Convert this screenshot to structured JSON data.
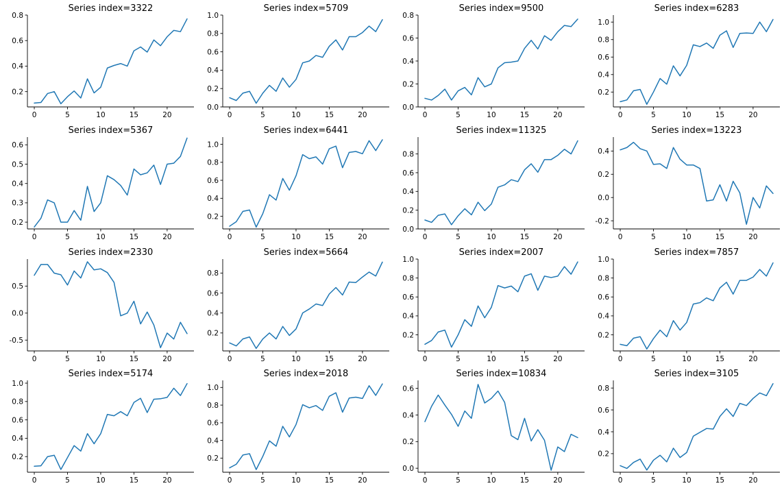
{
  "colors": {
    "line": "#1f77b4"
  },
  "chart_data": [
    {
      "type": "line",
      "title": "Series index=3322",
      "xlim": [
        0,
        23
      ],
      "ylim": [
        0.08,
        0.8
      ],
      "xticks": [
        0,
        5,
        10,
        15,
        20
      ],
      "yticks": [
        0.2,
        0.4,
        0.6,
        0.8
      ],
      "x": [
        0,
        1,
        2,
        3,
        4,
        5,
        6,
        7,
        8,
        9,
        10,
        11,
        12,
        13,
        14,
        15,
        16,
        17,
        18,
        19,
        20,
        21,
        22,
        23
      ],
      "values": [
        0.11,
        0.115,
        0.185,
        0.2,
        0.105,
        0.16,
        0.205,
        0.15,
        0.3,
        0.19,
        0.235,
        0.385,
        0.405,
        0.42,
        0.4,
        0.52,
        0.55,
        0.51,
        0.605,
        0.56,
        0.63,
        0.68,
        0.67,
        0.77
      ]
    },
    {
      "type": "line",
      "title": "Series index=5709",
      "xlim": [
        0,
        23
      ],
      "ylim": [
        0,
        1.0
      ],
      "xticks": [
        0,
        5,
        10,
        15,
        20
      ],
      "yticks": [
        0.0,
        0.2,
        0.4,
        0.6,
        0.8,
        1.0
      ],
      "x": [
        0,
        1,
        2,
        3,
        4,
        5,
        6,
        7,
        8,
        9,
        10,
        11,
        12,
        13,
        14,
        15,
        16,
        17,
        18,
        19,
        20,
        21,
        22,
        23
      ],
      "values": [
        0.1,
        0.07,
        0.15,
        0.17,
        0.04,
        0.15,
        0.235,
        0.17,
        0.315,
        0.215,
        0.3,
        0.48,
        0.5,
        0.56,
        0.54,
        0.66,
        0.73,
        0.62,
        0.765,
        0.765,
        0.81,
        0.88,
        0.82,
        0.95
      ]
    },
    {
      "type": "line",
      "title": "Series index=9500",
      "xlim": [
        0,
        23
      ],
      "ylim": [
        0,
        0.8
      ],
      "xticks": [
        0,
        5,
        10,
        15,
        20
      ],
      "yticks": [
        0.0,
        0.2,
        0.4,
        0.6,
        0.8
      ],
      "x": [
        0,
        1,
        2,
        3,
        4,
        5,
        6,
        7,
        8,
        9,
        10,
        11,
        12,
        13,
        14,
        15,
        16,
        17,
        18,
        19,
        20,
        21,
        22,
        23
      ],
      "values": [
        0.075,
        0.06,
        0.1,
        0.155,
        0.06,
        0.14,
        0.17,
        0.105,
        0.255,
        0.175,
        0.2,
        0.34,
        0.385,
        0.39,
        0.4,
        0.51,
        0.58,
        0.505,
        0.62,
        0.58,
        0.655,
        0.71,
        0.7,
        0.765
      ]
    },
    {
      "type": "line",
      "title": "Series index=6283",
      "xlim": [
        0,
        23
      ],
      "ylim": [
        0.03,
        1.08
      ],
      "xticks": [
        0,
        5,
        10,
        15,
        20
      ],
      "yticks": [
        0.2,
        0.4,
        0.6,
        0.8,
        1.0
      ],
      "x": [
        0,
        1,
        2,
        3,
        4,
        5,
        6,
        7,
        8,
        9,
        10,
        11,
        12,
        13,
        14,
        15,
        16,
        17,
        18,
        19,
        20,
        21,
        22,
        23
      ],
      "values": [
        0.09,
        0.11,
        0.215,
        0.23,
        0.06,
        0.2,
        0.355,
        0.29,
        0.5,
        0.385,
        0.505,
        0.74,
        0.72,
        0.76,
        0.7,
        0.85,
        0.9,
        0.71,
        0.87,
        0.875,
        0.87,
        1.0,
        0.89,
        1.03
      ]
    },
    {
      "type": "line",
      "title": "Series index=5367",
      "xlim": [
        0,
        23
      ],
      "ylim": [
        0.165,
        0.64
      ],
      "xticks": [
        0,
        5,
        10,
        15,
        20
      ],
      "yticks": [
        0.2,
        0.3,
        0.4,
        0.5,
        0.6
      ],
      "x": [
        0,
        1,
        2,
        3,
        4,
        5,
        6,
        7,
        8,
        9,
        10,
        11,
        12,
        13,
        14,
        15,
        16,
        17,
        18,
        19,
        20,
        21,
        22,
        23
      ],
      "values": [
        0.175,
        0.22,
        0.315,
        0.3,
        0.2,
        0.2,
        0.26,
        0.21,
        0.385,
        0.255,
        0.3,
        0.44,
        0.42,
        0.39,
        0.34,
        0.475,
        0.445,
        0.455,
        0.495,
        0.395,
        0.5,
        0.505,
        0.54,
        0.635
      ]
    },
    {
      "type": "line",
      "title": "Series index=6441",
      "xlim": [
        0,
        23
      ],
      "ylim": [
        0.06,
        1.08
      ],
      "xticks": [
        0,
        5,
        10,
        15,
        20
      ],
      "yticks": [
        0.2,
        0.4,
        0.6,
        0.8,
        1.0
      ],
      "x": [
        0,
        1,
        2,
        3,
        4,
        5,
        6,
        7,
        8,
        9,
        10,
        11,
        12,
        13,
        14,
        15,
        16,
        17,
        18,
        19,
        20,
        21,
        22,
        23
      ],
      "values": [
        0.09,
        0.14,
        0.255,
        0.27,
        0.08,
        0.23,
        0.44,
        0.38,
        0.62,
        0.49,
        0.65,
        0.885,
        0.84,
        0.86,
        0.78,
        0.95,
        0.98,
        0.74,
        0.91,
        0.92,
        0.895,
        1.04,
        0.93,
        1.05
      ]
    },
    {
      "type": "line",
      "title": "Series index=11325",
      "xlim": [
        0,
        23
      ],
      "ylim": [
        0,
        0.98
      ],
      "xticks": [
        0,
        5,
        10,
        15,
        20
      ],
      "yticks": [
        0.0,
        0.2,
        0.4,
        0.6,
        0.8
      ],
      "x": [
        0,
        1,
        2,
        3,
        4,
        5,
        6,
        7,
        8,
        9,
        10,
        11,
        12,
        13,
        14,
        15,
        16,
        17,
        18,
        19,
        20,
        21,
        22,
        23
      ],
      "values": [
        0.095,
        0.07,
        0.145,
        0.16,
        0.045,
        0.14,
        0.215,
        0.15,
        0.285,
        0.195,
        0.265,
        0.445,
        0.47,
        0.525,
        0.505,
        0.63,
        0.695,
        0.605,
        0.74,
        0.74,
        0.785,
        0.85,
        0.8,
        0.94
      ]
    },
    {
      "type": "line",
      "title": "Series index=13223",
      "xlim": [
        0,
        23
      ],
      "ylim": [
        -0.27,
        0.52
      ],
      "xticks": [
        0,
        5,
        10,
        15,
        20
      ],
      "yticks": [
        -0.2,
        0.0,
        0.2,
        0.4
      ],
      "x": [
        0,
        1,
        2,
        3,
        4,
        5,
        6,
        7,
        8,
        9,
        10,
        11,
        12,
        13,
        14,
        15,
        16,
        17,
        18,
        19,
        20,
        21,
        22,
        23
      ],
      "values": [
        0.41,
        0.43,
        0.475,
        0.42,
        0.4,
        0.285,
        0.29,
        0.25,
        0.43,
        0.33,
        0.28,
        0.28,
        0.25,
        -0.03,
        -0.02,
        0.11,
        -0.03,
        0.14,
        0.04,
        -0.23,
        0.0,
        -0.09,
        0.1,
        0.035
      ]
    },
    {
      "type": "line",
      "title": "Series index=2330",
      "xlim": [
        0,
        23
      ],
      "ylim": [
        -0.7,
        1.0
      ],
      "xticks": [
        0,
        5,
        10,
        15,
        20
      ],
      "yticks": [
        -0.5,
        0.0,
        0.5
      ],
      "x": [
        0,
        1,
        2,
        3,
        4,
        5,
        6,
        7,
        8,
        9,
        10,
        11,
        12,
        13,
        14,
        15,
        16,
        17,
        18,
        19,
        20,
        21,
        22,
        23
      ],
      "values": [
        0.7,
        0.9,
        0.9,
        0.74,
        0.71,
        0.52,
        0.78,
        0.65,
        0.95,
        0.8,
        0.82,
        0.75,
        0.57,
        -0.05,
        0.0,
        0.22,
        -0.2,
        0.02,
        -0.22,
        -0.64,
        -0.37,
        -0.48,
        -0.17,
        -0.38
      ]
    },
    {
      "type": "line",
      "title": "Series index=5664",
      "xlim": [
        0,
        23
      ],
      "ylim": [
        0.02,
        0.94
      ],
      "xticks": [
        0,
        5,
        10,
        15,
        20
      ],
      "yticks": [
        0.2,
        0.4,
        0.6,
        0.8
      ],
      "x": [
        0,
        1,
        2,
        3,
        4,
        5,
        6,
        7,
        8,
        9,
        10,
        11,
        12,
        13,
        14,
        15,
        16,
        17,
        18,
        19,
        20,
        21,
        22,
        23
      ],
      "values": [
        0.1,
        0.07,
        0.14,
        0.16,
        0.045,
        0.14,
        0.2,
        0.14,
        0.265,
        0.175,
        0.24,
        0.4,
        0.44,
        0.49,
        0.475,
        0.59,
        0.655,
        0.58,
        0.71,
        0.705,
        0.76,
        0.81,
        0.77,
        0.91
      ]
    },
    {
      "type": "line",
      "title": "Series index=2007",
      "xlim": [
        0,
        23
      ],
      "ylim": [
        0.03,
        1.0
      ],
      "xticks": [
        0,
        5,
        10,
        15,
        20
      ],
      "yticks": [
        0.2,
        0.4,
        0.6,
        0.8,
        1.0
      ],
      "x": [
        0,
        1,
        2,
        3,
        4,
        5,
        6,
        7,
        8,
        9,
        10,
        11,
        12,
        13,
        14,
        15,
        16,
        17,
        18,
        19,
        20,
        21,
        22,
        23
      ],
      "values": [
        0.1,
        0.14,
        0.23,
        0.25,
        0.07,
        0.2,
        0.36,
        0.29,
        0.505,
        0.38,
        0.49,
        0.72,
        0.695,
        0.715,
        0.655,
        0.82,
        0.845,
        0.67,
        0.82,
        0.805,
        0.82,
        0.92,
        0.84,
        0.97
      ]
    },
    {
      "type": "line",
      "title": "Series index=7857",
      "xlim": [
        0,
        23
      ],
      "ylim": [
        0.03,
        1.0
      ],
      "xticks": [
        0,
        5,
        10,
        15,
        20
      ],
      "yticks": [
        0.2,
        0.4,
        0.6,
        0.8,
        1.0
      ],
      "x": [
        0,
        1,
        2,
        3,
        4,
        5,
        6,
        7,
        8,
        9,
        10,
        11,
        12,
        13,
        14,
        15,
        16,
        17,
        18,
        19,
        20,
        21,
        22,
        23
      ],
      "values": [
        0.1,
        0.085,
        0.165,
        0.18,
        0.05,
        0.16,
        0.25,
        0.18,
        0.35,
        0.25,
        0.33,
        0.525,
        0.54,
        0.59,
        0.56,
        0.695,
        0.755,
        0.63,
        0.775,
        0.775,
        0.81,
        0.89,
        0.82,
        0.96
      ]
    },
    {
      "type": "line",
      "title": "Series index=5174",
      "xlim": [
        0,
        23
      ],
      "ylim": [
        0.03,
        1.03
      ],
      "xticks": [
        0,
        5,
        10,
        15,
        20
      ],
      "yticks": [
        0.2,
        0.4,
        0.6,
        0.8,
        1.0
      ],
      "x": [
        0,
        1,
        2,
        3,
        4,
        5,
        6,
        7,
        8,
        9,
        10,
        11,
        12,
        13,
        14,
        15,
        16,
        17,
        18,
        19,
        20,
        21,
        22,
        23
      ],
      "values": [
        0.095,
        0.1,
        0.2,
        0.215,
        0.06,
        0.19,
        0.32,
        0.26,
        0.45,
        0.34,
        0.45,
        0.66,
        0.645,
        0.69,
        0.645,
        0.79,
        0.835,
        0.68,
        0.825,
        0.83,
        0.845,
        0.945,
        0.865,
        0.995
      ]
    },
    {
      "type": "line",
      "title": "Series index=2018",
      "xlim": [
        0,
        23
      ],
      "ylim": [
        0.04,
        1.08
      ],
      "xticks": [
        0,
        5,
        10,
        15,
        20
      ],
      "yticks": [
        0.2,
        0.4,
        0.6,
        0.8,
        1.0
      ],
      "x": [
        0,
        1,
        2,
        3,
        4,
        5,
        6,
        7,
        8,
        9,
        10,
        11,
        12,
        13,
        14,
        15,
        16,
        17,
        18,
        19,
        20,
        21,
        22,
        23
      ],
      "values": [
        0.09,
        0.13,
        0.235,
        0.25,
        0.07,
        0.22,
        0.395,
        0.335,
        0.56,
        0.44,
        0.58,
        0.805,
        0.77,
        0.795,
        0.74,
        0.9,
        0.94,
        0.72,
        0.88,
        0.89,
        0.875,
        1.02,
        0.91,
        1.04
      ]
    },
    {
      "type": "line",
      "title": "Series index=10834",
      "xlim": [
        0,
        23
      ],
      "ylim": [
        -0.03,
        0.66
      ],
      "xticks": [
        0,
        5,
        10,
        15,
        20
      ],
      "yticks": [
        0.0,
        0.2,
        0.4,
        0.6
      ],
      "x": [
        0,
        1,
        2,
        3,
        4,
        5,
        6,
        7,
        8,
        9,
        10,
        11,
        12,
        13,
        14,
        15,
        16,
        17,
        18,
        19,
        20,
        21,
        22,
        23
      ],
      "values": [
        0.35,
        0.465,
        0.55,
        0.475,
        0.405,
        0.315,
        0.43,
        0.375,
        0.63,
        0.49,
        0.525,
        0.58,
        0.495,
        0.245,
        0.215,
        0.375,
        0.205,
        0.29,
        0.21,
        -0.015,
        0.16,
        0.125,
        0.255,
        0.23
      ]
    },
    {
      "type": "line",
      "title": "Series index=3105",
      "xlim": [
        0,
        23
      ],
      "ylim": [
        0.03,
        0.87
      ],
      "xticks": [
        0,
        5,
        10,
        15,
        20
      ],
      "yticks": [
        0.2,
        0.4,
        0.6,
        0.8
      ],
      "x": [
        0,
        1,
        2,
        3,
        4,
        5,
        6,
        7,
        8,
        9,
        10,
        11,
        12,
        13,
        14,
        15,
        16,
        17,
        18,
        19,
        20,
        21,
        22,
        23
      ],
      "values": [
        0.09,
        0.065,
        0.12,
        0.15,
        0.05,
        0.14,
        0.185,
        0.125,
        0.25,
        0.165,
        0.21,
        0.36,
        0.395,
        0.43,
        0.425,
        0.54,
        0.61,
        0.54,
        0.66,
        0.64,
        0.705,
        0.755,
        0.73,
        0.84
      ]
    }
  ]
}
